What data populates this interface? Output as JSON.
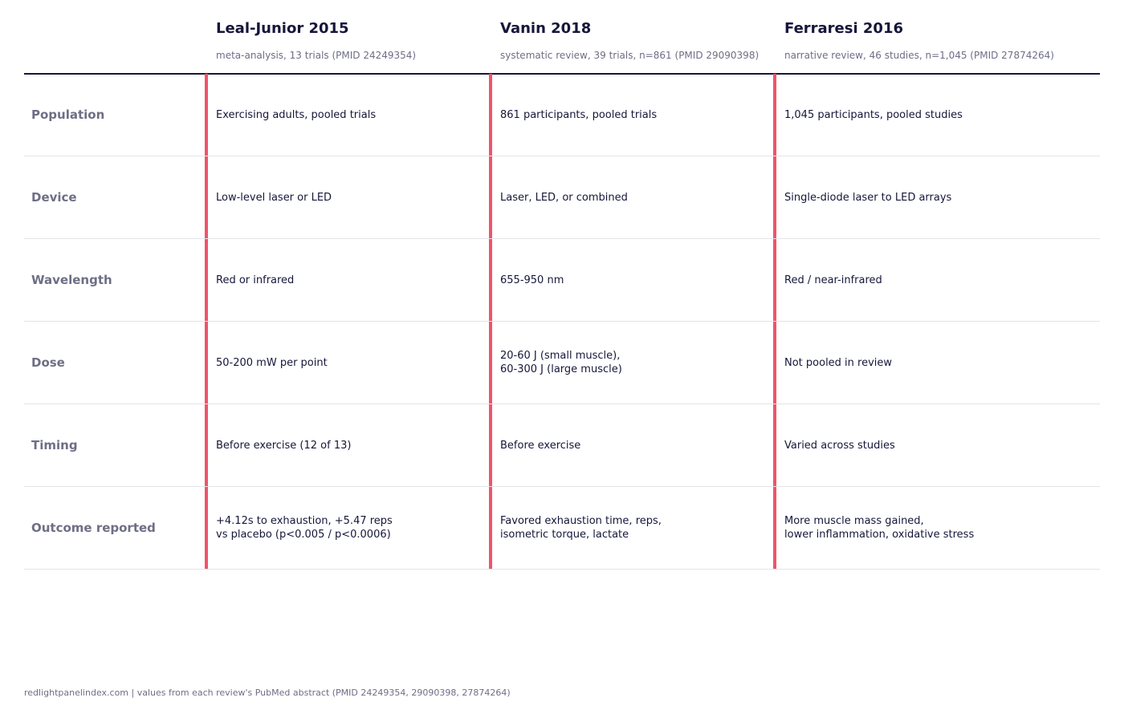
{
  "columns": [
    {
      "title": "Leal-Junior 2015",
      "subtitle": "meta-analysis, 13 trials (PMID 24249354)"
    },
    {
      "title": "Vanin 2018",
      "subtitle": "systematic review, 39 trials, n=861 (PMID 29090398)"
    },
    {
      "title": "Ferraresi 2016",
      "subtitle": "narrative review, 46 studies, n=1,045 (PMID 27874264)"
    }
  ],
  "rows": [
    {
      "label": "Population",
      "cells": [
        "Exercising adults, pooled trials",
        "861 participants, pooled trials",
        "1,045 participants, pooled studies"
      ]
    },
    {
      "label": "Device",
      "cells": [
        "Low-level laser or LED",
        "Laser, LED, or combined",
        "Single-diode laser to LED arrays"
      ]
    },
    {
      "label": "Wavelength",
      "cells": [
        "Red or infrared",
        "655-950 nm",
        "Red / near-infrared"
      ]
    },
    {
      "label": "Dose",
      "cells": [
        "50-200 mW per point",
        "20-60 J (small muscle),\n60-300 J (large muscle)",
        "Not pooled in review"
      ]
    },
    {
      "label": "Timing",
      "cells": [
        "Before exercise (12 of 13)",
        "Before exercise",
        "Varied across studies"
      ]
    },
    {
      "label": "Outcome reported",
      "cells": [
        "+4.12s to exhaustion, +5.47 reps\nvs placebo (p<0.005 / p<0.0006)",
        "Favored exhaustion time, reps,\nisometric torque, lactate",
        "More muscle mass gained,\nlower inflammation, oxidative stress"
      ]
    }
  ],
  "footer": "redlightpanelindex.com | values from each review's PubMed abstract (PMID 24249354, 29090398, 27874264)",
  "colors": {
    "accent": "#f0546a",
    "text": "#15163a",
    "muted": "#6e6e86"
  }
}
